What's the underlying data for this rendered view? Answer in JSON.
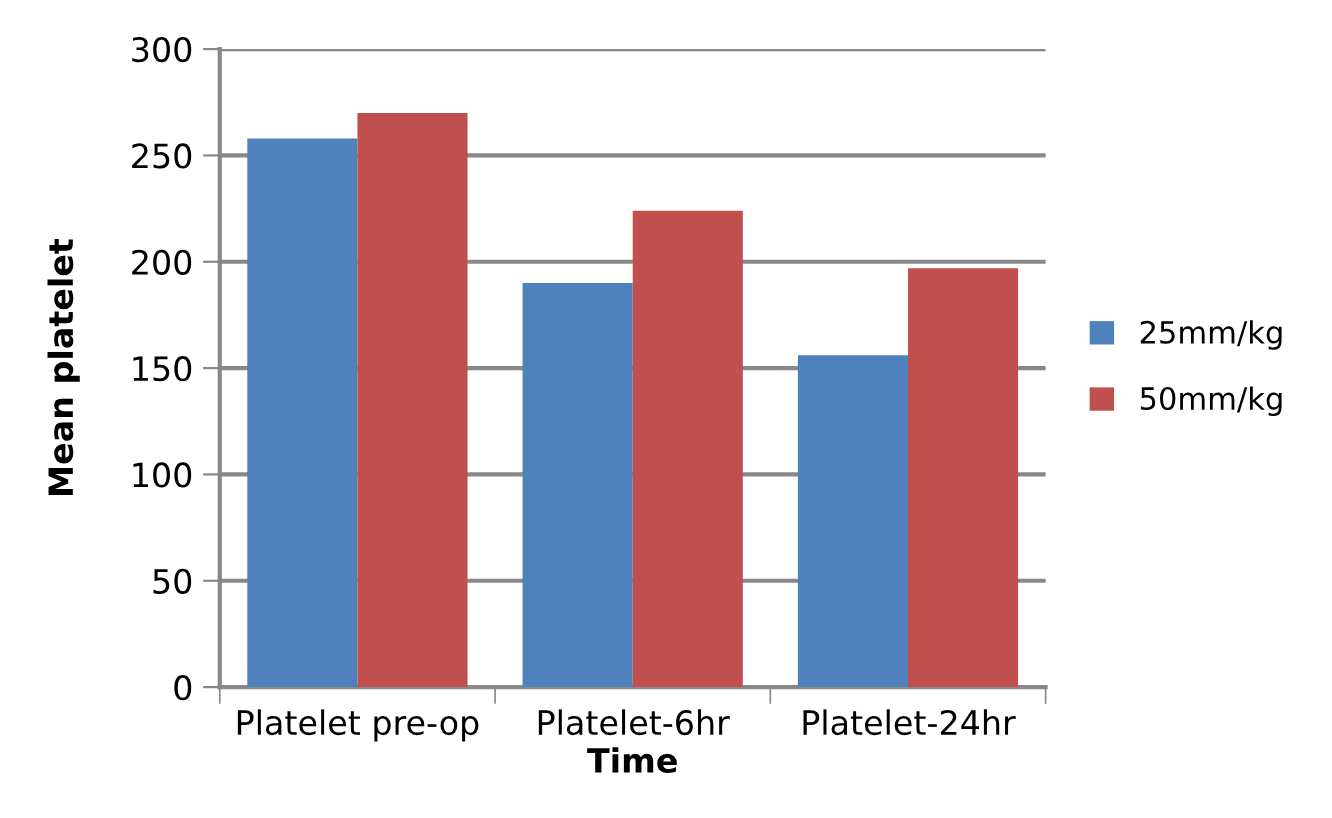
{
  "chart_data": {
    "type": "bar",
    "xlabel": "Time",
    "ylabel": "Mean platelet",
    "categories": [
      "Platelet pre-op",
      "Platelet-6hr",
      "Platelet-24hr"
    ],
    "series": [
      {
        "name": "25mm/kg",
        "color": "#4f81bd",
        "values": [
          258,
          190,
          156
        ]
      },
      {
        "name": "50mm/kg",
        "color": "#c0504d",
        "values": [
          270,
          224,
          197
        ]
      }
    ],
    "ylim": [
      0,
      300
    ],
    "yticks": [
      0,
      50,
      100,
      150,
      200,
      250,
      300
    ],
    "grid": "y",
    "legend": "right"
  }
}
